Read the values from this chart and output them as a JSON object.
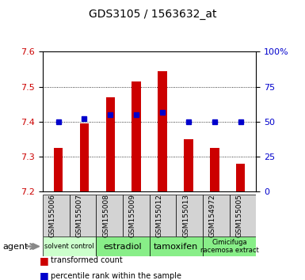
{
  "title": "GDS3105 / 1563632_at",
  "samples": [
    "GSM155006",
    "GSM155007",
    "GSM155008",
    "GSM155009",
    "GSM155012",
    "GSM155013",
    "GSM154972",
    "GSM155005"
  ],
  "red_values": [
    7.325,
    7.395,
    7.47,
    7.515,
    7.545,
    7.35,
    7.325,
    7.28
  ],
  "blue_values": [
    50,
    52,
    55,
    55,
    57,
    50,
    50,
    50
  ],
  "ymin": 7.2,
  "ymax": 7.6,
  "y2min": 0,
  "y2max": 100,
  "yticks": [
    7.2,
    7.3,
    7.4,
    7.5,
    7.6
  ],
  "y2ticks": [
    0,
    25,
    50,
    75,
    100
  ],
  "bar_color": "#cc0000",
  "dot_color": "#0000cc",
  "bar_width": 0.35,
  "plot_bg": "#ffffff",
  "sample_bg": "#d3d3d3",
  "ylabel_left_color": "#cc0000",
  "ylabel_right_color": "#0000cc",
  "agent_labels": [
    {
      "label": "solvent control",
      "start": 0,
      "end": 2,
      "color": "#ccffcc",
      "fontsize": 6
    },
    {
      "label": "estradiol",
      "start": 2,
      "end": 4,
      "color": "#88ee88",
      "fontsize": 8
    },
    {
      "label": "tamoxifen",
      "start": 4,
      "end": 6,
      "color": "#88ee88",
      "fontsize": 8
    },
    {
      "label": "Cimicifuga\nracemosa extract",
      "start": 6,
      "end": 8,
      "color": "#88ee88",
      "fontsize": 6
    }
  ]
}
